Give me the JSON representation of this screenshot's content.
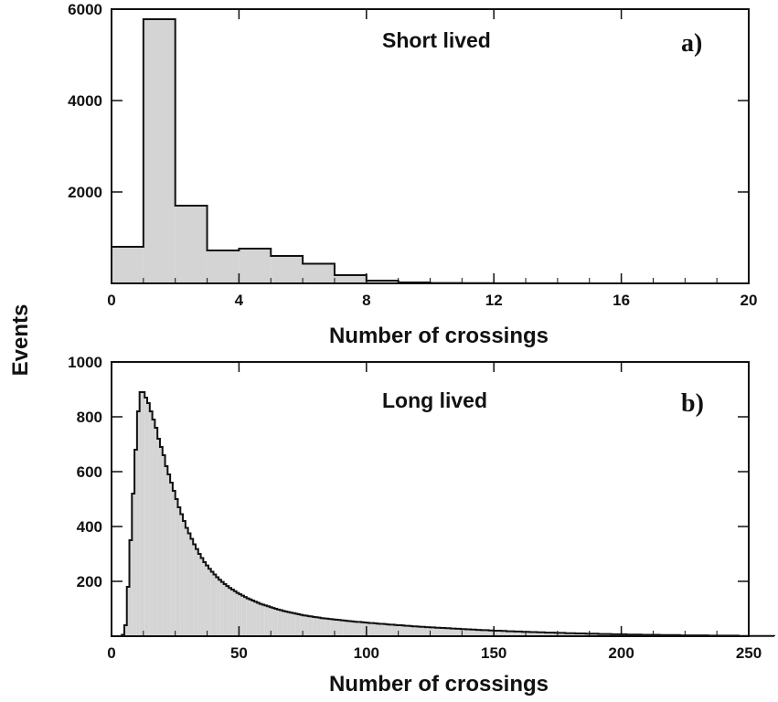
{
  "figure": {
    "shared_ylabel": "Events"
  },
  "chart_data": [
    {
      "type": "bar",
      "panel": "a)",
      "annotation": "Short lived",
      "xlabel": "Number of crossings",
      "ylabel": "Events",
      "xlim": [
        0,
        20
      ],
      "ylim": [
        0,
        6000
      ],
      "xticks": [
        0,
        4,
        8,
        12,
        16,
        20
      ],
      "yticks": [
        2000,
        4000,
        6000
      ],
      "bin_width": 1,
      "bin_edges": [
        0,
        1,
        2,
        3,
        4,
        5,
        6,
        7,
        8,
        9,
        10,
        11,
        12,
        13,
        14,
        15,
        16,
        17,
        18,
        19,
        20
      ],
      "values": [
        800,
        5780,
        1700,
        720,
        760,
        600,
        430,
        180,
        60,
        20,
        8,
        5,
        3,
        2,
        1,
        1,
        0,
        0,
        0,
        0
      ],
      "grid": false,
      "legend": "none"
    },
    {
      "type": "bar",
      "panel": "b)",
      "annotation": "Long lived",
      "xlabel": "Number of crossings",
      "ylabel": "Events",
      "xlim": [
        0,
        250
      ],
      "ylim": [
        0,
        1000
      ],
      "xticks": [
        0,
        50,
        100,
        150,
        200,
        250
      ],
      "yticks": [
        200,
        400,
        600,
        800,
        1000
      ],
      "bin_width": 1,
      "bin_start": 0,
      "values": [
        0,
        0,
        0,
        0,
        5,
        40,
        180,
        350,
        520,
        680,
        820,
        890,
        890,
        870,
        850,
        820,
        790,
        760,
        720,
        690,
        660,
        620,
        590,
        560,
        530,
        500,
        470,
        445,
        420,
        395,
        375,
        355,
        335,
        318,
        300,
        285,
        270,
        258,
        246,
        235,
        225,
        215,
        206,
        198,
        190,
        183,
        176,
        170,
        164,
        158,
        153,
        148,
        143,
        138,
        134,
        130,
        126,
        122,
        118,
        115,
        112,
        109,
        106,
        103,
        100,
        97,
        95,
        92,
        90,
        88,
        86,
        84,
        82,
        80,
        78,
        76,
        75,
        73,
        72,
        70,
        69,
        68,
        66,
        65,
        64,
        63,
        62,
        61,
        60,
        59,
        58,
        57,
        56,
        55,
        54,
        53,
        52,
        52,
        51,
        50,
        49,
        48,
        48,
        47,
        46,
        45,
        45,
        44,
        43,
        42,
        42,
        41,
        40,
        40,
        39,
        38,
        38,
        37,
        36,
        36,
        35,
        34,
        34,
        33,
        33,
        32,
        32,
        31,
        31,
        30,
        30,
        29,
        29,
        28,
        28,
        27,
        27,
        26,
        26,
        25,
        25,
        24,
        24,
        23,
        23,
        22,
        22,
        22,
        21,
        21,
        20,
        20,
        20,
        19,
        19,
        18,
        18,
        18,
        17,
        17,
        17,
        16,
        16,
        16,
        15,
        15,
        15,
        14,
        14,
        14,
        13,
        13,
        13,
        13,
        12,
        12,
        12,
        12,
        11,
        11,
        11,
        11,
        10,
        10,
        10,
        10,
        9,
        9,
        9,
        9,
        9,
        8,
        8,
        8,
        8,
        8,
        7,
        7,
        7,
        7,
        7,
        7,
        6,
        6,
        6,
        6,
        6,
        6,
        5,
        5,
        5,
        5,
        5,
        5,
        5,
        4,
        4,
        4,
        4,
        4,
        4,
        4,
        4,
        3,
        3,
        3,
        3,
        3,
        3,
        3,
        3,
        3,
        3,
        3,
        2,
        2,
        2,
        2,
        2,
        2,
        2,
        2,
        2,
        2,
        2,
        2,
        1,
        1,
        1,
        1,
        1,
        1,
        1,
        1,
        1,
        1,
        1,
        1,
        1,
        1
      ],
      "grid": false,
      "legend": "none"
    }
  ]
}
